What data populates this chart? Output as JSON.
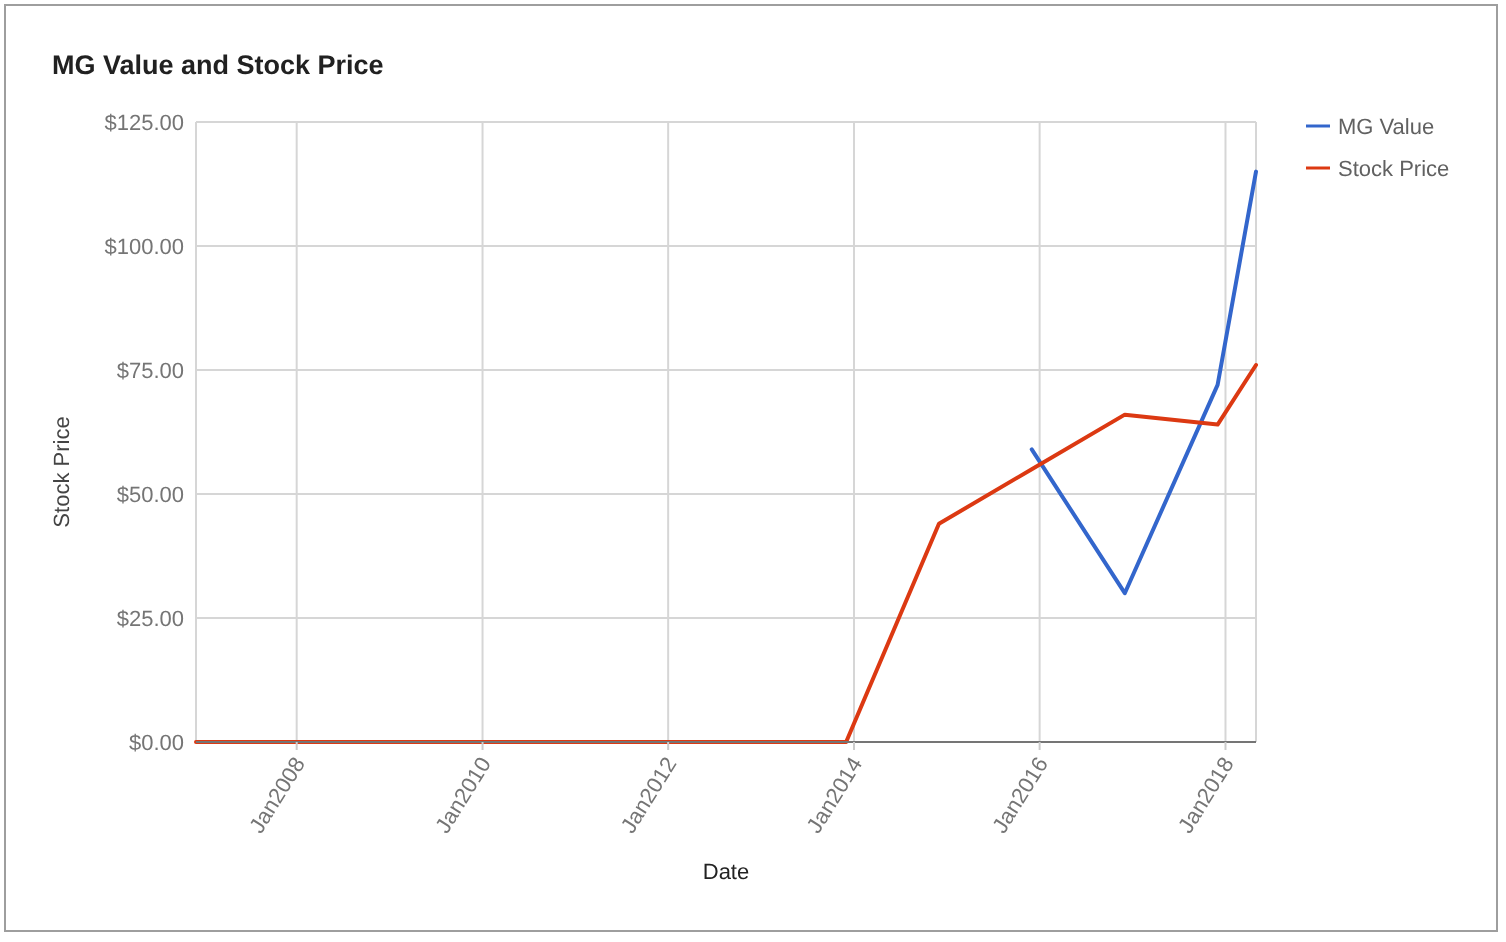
{
  "chart_data": {
    "type": "line",
    "title": "MG Value and Stock Price",
    "xlabel": "Date",
    "ylabel": "Stock Price",
    "x": [
      "2006-12",
      "2007-12",
      "2008-12",
      "2009-12",
      "2010-12",
      "2011-12",
      "2012-12",
      "2013-12",
      "2014-12",
      "2015-12",
      "2016-12",
      "2017-12",
      "2018-05"
    ],
    "series": [
      {
        "name": "MG Value",
        "color": "#3366cc",
        "values": [
          null,
          null,
          null,
          null,
          null,
          null,
          null,
          null,
          null,
          59,
          30,
          72,
          115
        ]
      },
      {
        "name": "Stock Price",
        "color": "#dc3912",
        "values": [
          0,
          0,
          0,
          0,
          0,
          0,
          0,
          0,
          44,
          55,
          66,
          64,
          76
        ]
      }
    ],
    "xlim": [
      "2006-12",
      "2018-05"
    ],
    "xticks": [
      {
        "value": "2008-01",
        "label": "Jan2008"
      },
      {
        "value": "2010-01",
        "label": "Jan2010"
      },
      {
        "value": "2012-01",
        "label": "Jan2012"
      },
      {
        "value": "2014-01",
        "label": "Jan2014"
      },
      {
        "value": "2016-01",
        "label": "Jan2016"
      },
      {
        "value": "2018-01",
        "label": "Jan2018"
      }
    ],
    "ylim": [
      0,
      125
    ],
    "yticks": [
      {
        "value": 0,
        "label": "$0.00"
      },
      {
        "value": 25,
        "label": "$25.00"
      },
      {
        "value": 50,
        "label": "$50.00"
      },
      {
        "value": 75,
        "label": "$75.00"
      },
      {
        "value": 100,
        "label": "$100.00"
      },
      {
        "value": 125,
        "label": "$125.00"
      }
    ],
    "grid": true,
    "legend": "top right",
    "line_style": "solid"
  }
}
